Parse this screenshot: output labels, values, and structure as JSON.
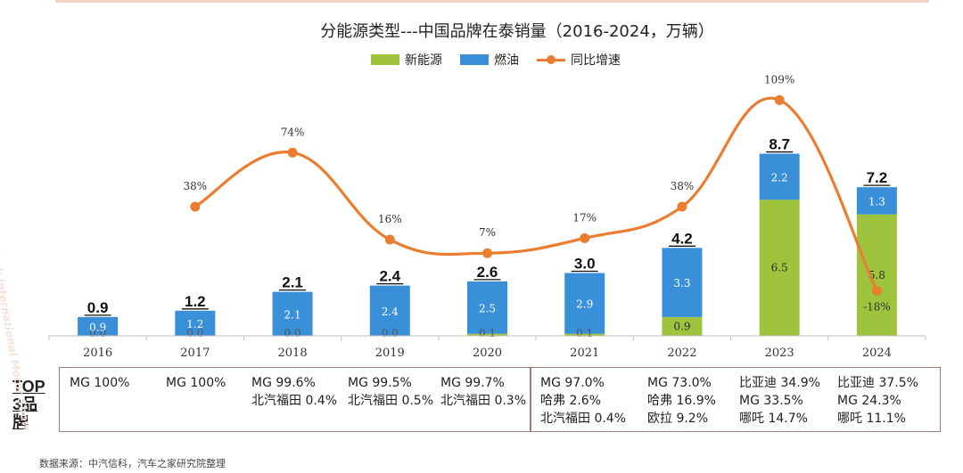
{
  "chart_data": {
    "type": "bar",
    "title": "分能源类型---中国品牌在泰销量（2016-2024，万辆）",
    "categories": [
      "2016",
      "2017",
      "2018",
      "2019",
      "2020",
      "2021",
      "2022",
      "2023",
      "2024"
    ],
    "series": [
      {
        "name": "新能源",
        "color": "#9dc43c",
        "values": [
          0.0,
          0.0,
          0.0,
          0.0,
          0.1,
          0.1,
          0.9,
          6.5,
          5.8
        ],
        "labels": [
          "0.0",
          "0.0",
          "0.0",
          "0.0",
          "0.1",
          "0.1",
          "0.9",
          "6.5",
          "5.8"
        ]
      },
      {
        "name": "燃油",
        "color": "#3a8fd9",
        "values": [
          0.9,
          1.2,
          2.1,
          2.4,
          2.5,
          2.9,
          3.3,
          2.2,
          1.3
        ],
        "labels": [
          "0.9",
          "1.2",
          "2.1",
          "2.4",
          "2.5",
          "2.9",
          "3.3",
          "2.2",
          "1.3"
        ]
      }
    ],
    "totals": [
      "0.9",
      "1.2",
      "2.1",
      "2.4",
      "2.6",
      "3.0",
      "4.2",
      "8.7",
      "7.2"
    ],
    "total_values": [
      0.9,
      1.2,
      2.1,
      2.4,
      2.6,
      3.0,
      4.2,
      8.7,
      7.2
    ],
    "line": {
      "name": "同比增速",
      "color": "#ea7d2f",
      "points": [
        {
          "category": "2017",
          "value": 38,
          "label": "38%"
        },
        {
          "category": "2018",
          "value": 74,
          "label": "74%"
        },
        {
          "category": "2019",
          "value": 16,
          "label": "16%"
        },
        {
          "category": "2020",
          "value": 7,
          "label": "7%"
        },
        {
          "category": "2021",
          "value": 17,
          "label": "17%"
        },
        {
          "category": "2022",
          "value": 38,
          "label": "38%"
        },
        {
          "category": "2023",
          "value": 109,
          "label": "109%"
        },
        {
          "category": "2024",
          "value": -18,
          "label": "-18%"
        }
      ]
    },
    "ylim": [
      0,
      9
    ],
    "y2lim": [
      -30,
      120
    ],
    "legend": "top-center"
  },
  "legend": {
    "nev": "新能源",
    "fuel": "燃油",
    "growth": "同比增速"
  },
  "top3": {
    "label_line1": "TOP",
    "label_line2": "3品",
    "label_line3": "牌",
    "columns": [
      [
        "MG 100%"
      ],
      [
        "MG 100%"
      ],
      [
        "MG 99.6%",
        "北汽福田 0.4%"
      ],
      [
        "MG 99.5%",
        "北汽福田 0.5%"
      ],
      [
        "MG 99.7%",
        "北汽福田 0.3%"
      ],
      [
        "MG 97.0%",
        "哈弗 2.6%",
        "北汽福田 0.4%"
      ],
      [
        "MG 73.0%",
        "哈弗 16.9%",
        "欧拉 9.2%"
      ],
      [
        "比亚迪 34.9%",
        "MG 33.5%",
        "哪吒 14.7%"
      ],
      [
        "比亚迪 37.5%",
        "MG 24.3%",
        "哪吒 11.1%"
      ]
    ]
  },
  "source": "数据来源：中汽信科，汽车之家研究院整理",
  "watermark": "Bangkok International Motor Show"
}
